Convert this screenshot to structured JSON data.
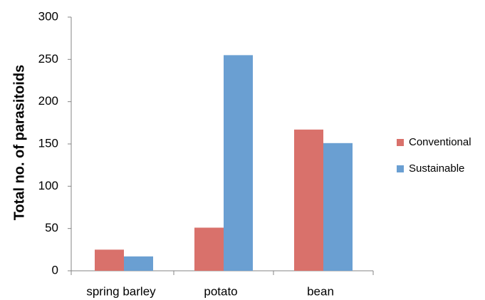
{
  "chart_data": {
    "type": "bar",
    "y_label": "Total no. of parasitoids",
    "categories": [
      "spring barley",
      "potato",
      "bean"
    ],
    "series": [
      {
        "name": "Conventional",
        "color": "#d9716b",
        "values": [
          25,
          51,
          167
        ]
      },
      {
        "name": "Sustainable",
        "color": "#6a9fd2",
        "values": [
          17,
          255,
          151
        ]
      }
    ],
    "ylim": [
      0,
      300
    ],
    "yticks": [
      0,
      50,
      100,
      150,
      200,
      250,
      300
    ],
    "grid": false,
    "legend": "right"
  }
}
